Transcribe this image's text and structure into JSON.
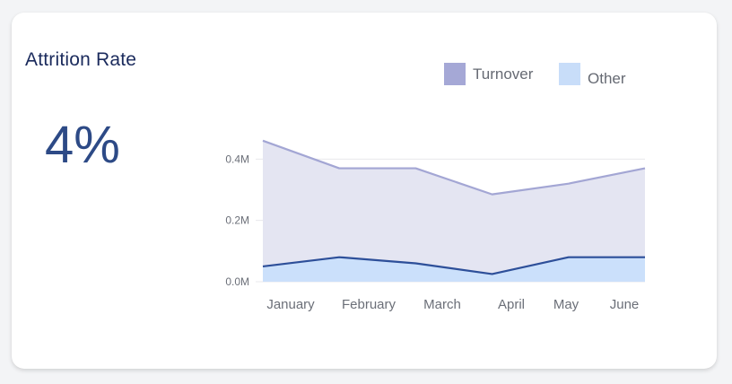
{
  "card": {
    "title": "Attrition Rate",
    "kpi_value": "4%"
  },
  "colors": {
    "turnover_fill": "#e4e5f2",
    "turnover_line": "#a3a6d4",
    "turnover_swatch": "#a5a8d6",
    "other_fill": "#cbe0fb",
    "other_line": "#2d4f99",
    "other_swatch": "#c8ddf9",
    "grid": "#e8e8ec"
  },
  "chart_data": {
    "type": "area",
    "categories": [
      "January",
      "February",
      "March",
      "April",
      "May",
      "June"
    ],
    "series": [
      {
        "name": "Turnover",
        "values": [
          0.46,
          0.37,
          0.37,
          0.285,
          0.32,
          0.37
        ]
      },
      {
        "name": "Other",
        "values": [
          0.05,
          0.08,
          0.06,
          0.025,
          0.08,
          0.08
        ]
      }
    ],
    "y_ticks": [
      {
        "value": 0.0,
        "label": "0.0M"
      },
      {
        "value": 0.2,
        "label": "0.2M"
      },
      {
        "value": 0.4,
        "label": "0.4M"
      }
    ],
    "ylim": [
      0,
      0.48
    ],
    "title": "",
    "xlabel": "",
    "ylabel": "",
    "legend_position": "top-right",
    "grid": true
  }
}
